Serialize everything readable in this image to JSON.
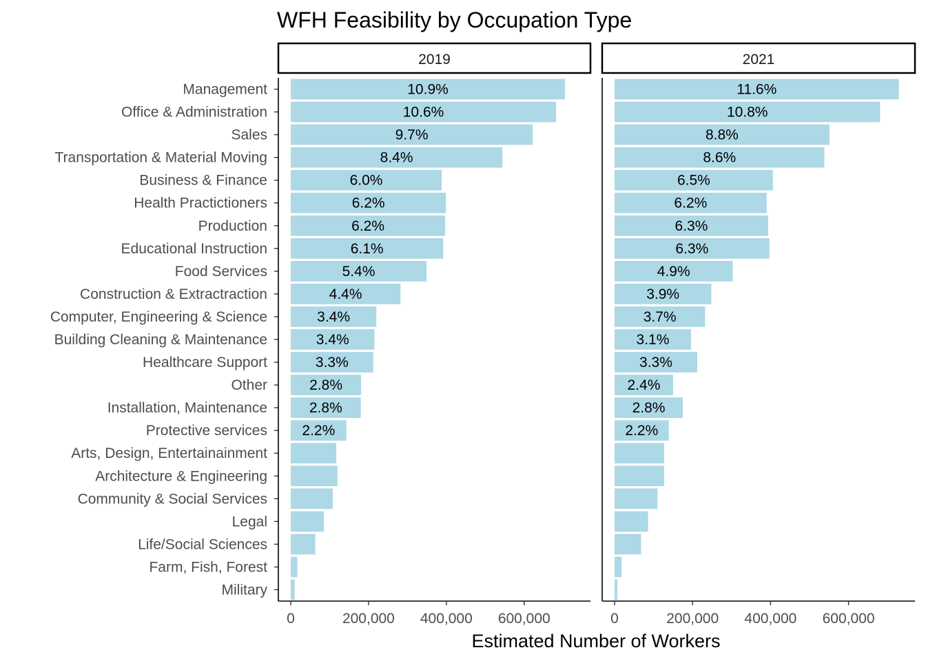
{
  "chart_data": {
    "type": "bar",
    "orientation": "horizontal",
    "title": "WFH Feasibility by Occupation Type",
    "xlabel": "Estimated Number of Workers",
    "ylabel": "",
    "xlim": [
      0,
      735000
    ],
    "x_ticks": [
      0,
      200000,
      400000,
      600000
    ],
    "x_tick_labels": [
      "0",
      "200,000",
      "400,000",
      "600,000"
    ],
    "bar_color": "#add8e6",
    "grid": false,
    "categories": [
      "Management",
      "Office & Administration",
      "Sales",
      "Transportation & Material Moving",
      "Business & Finance",
      "Health Practictioners",
      "Production",
      "Educational Instruction",
      "Food Services",
      "Construction & Extractraction",
      "Computer, Engineering & Science",
      "Building Cleaning & Maintenance",
      "Healthcare Support",
      "Other",
      "Installation, Maintenance",
      "Protective services",
      "Arts, Design, Entertainainment",
      "Architecture & Engineering",
      "Community & Social Services",
      "Legal",
      "Life/Social Sciences",
      "Farm, Fish, Forest",
      "Military"
    ],
    "facets": [
      {
        "name": "2019",
        "values": [
          705000,
          682000,
          622000,
          544000,
          388000,
          399000,
          397000,
          392000,
          349000,
          282000,
          220000,
          215000,
          212000,
          181000,
          180000,
          143000,
          117000,
          120000,
          108000,
          85000,
          63000,
          17000,
          10000
        ],
        "labels": [
          "10.9%",
          "10.6%",
          "9.7%",
          "8.4%",
          "6.0%",
          "6.2%",
          "6.2%",
          "6.1%",
          "5.4%",
          "4.4%",
          "3.4%",
          "3.4%",
          "3.3%",
          "2.8%",
          "2.8%",
          "2.2%",
          "",
          "",
          "",
          "",
          "",
          "",
          ""
        ]
      },
      {
        "name": "2021",
        "values": [
          729000,
          681000,
          551000,
          538000,
          406000,
          390000,
          394000,
          397000,
          303000,
          248000,
          232000,
          196000,
          212000,
          150000,
          175000,
          139000,
          127000,
          127000,
          110000,
          86000,
          68000,
          18000,
          7000
        ],
        "labels": [
          "11.6%",
          "10.8%",
          "8.8%",
          "8.6%",
          "6.5%",
          "6.2%",
          "6.3%",
          "6.3%",
          "4.9%",
          "3.9%",
          "3.7%",
          "3.1%",
          "3.3%",
          "2.4%",
          "2.8%",
          "2.2%",
          "",
          "",
          "",
          "",
          "",
          "",
          ""
        ]
      }
    ]
  }
}
